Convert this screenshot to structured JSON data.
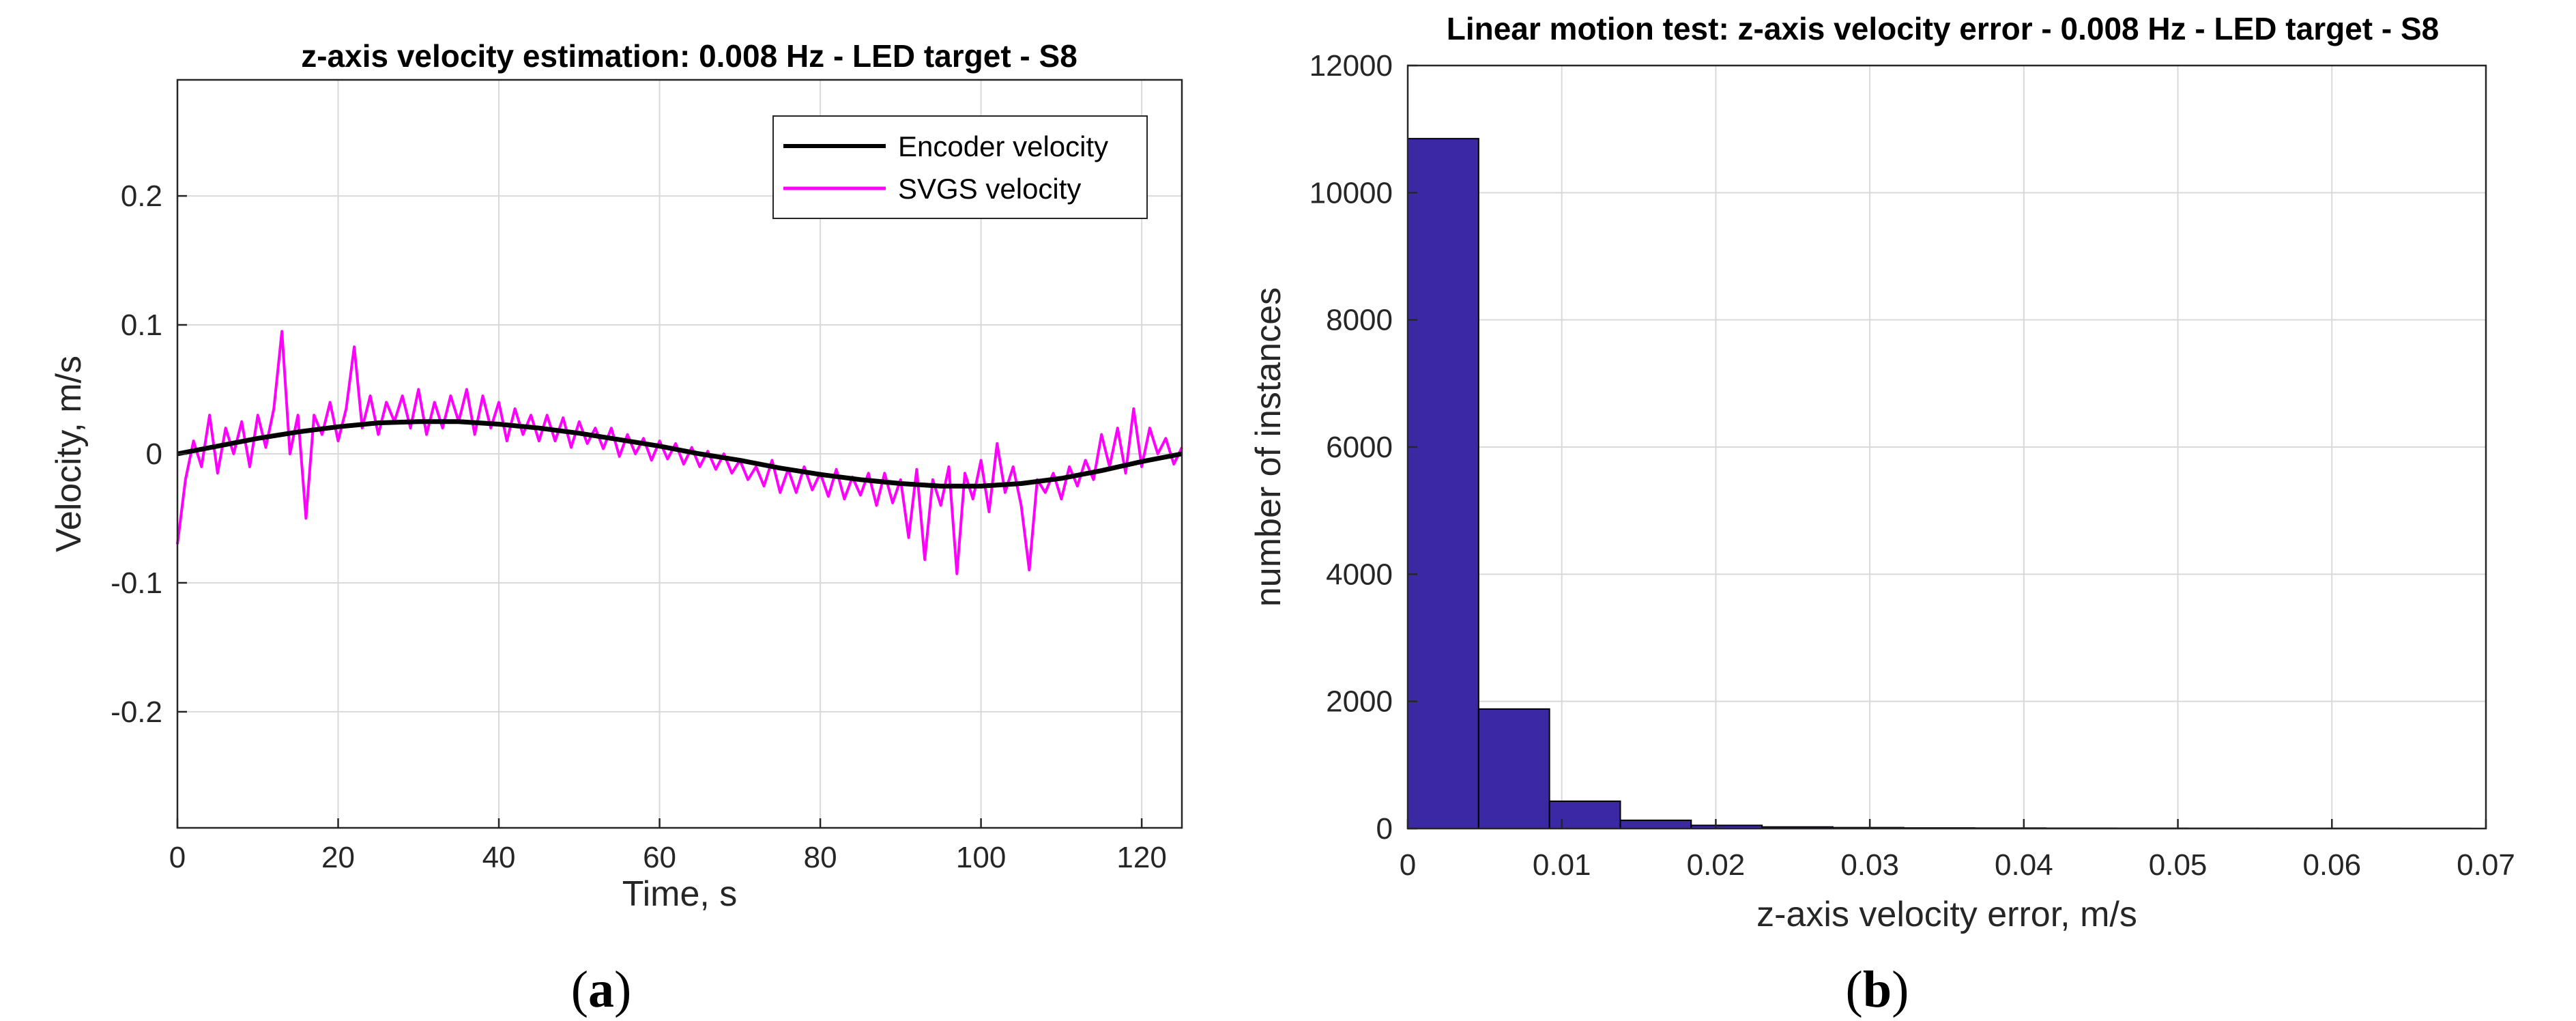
{
  "chart_data": [
    {
      "type": "line",
      "title": "z-axis velocity estimation: 0.008 Hz - LED target - S8",
      "xlabel": "Time, s",
      "ylabel": "Velocity, m/s",
      "xlim": [
        0,
        125
      ],
      "ylim": [
        -0.29,
        0.29
      ],
      "xticks": [
        0,
        20,
        40,
        60,
        80,
        100,
        120
      ],
      "yticks": [
        -0.2,
        -0.1,
        0,
        0.1,
        0.2
      ],
      "xtick_labels": [
        "0",
        "20",
        "40",
        "60",
        "80",
        "100",
        "120"
      ],
      "ytick_labels": [
        "-0.2",
        "-0.1",
        "0",
        "0.1",
        "0.2"
      ],
      "grid": true,
      "legend": {
        "position": "top-right",
        "entries": [
          "Encoder velocity",
          "SVGS velocity"
        ]
      },
      "series": [
        {
          "name": "Encoder velocity",
          "color": "#000000",
          "x": [
            0,
            5,
            10,
            15,
            20,
            25,
            30,
            35,
            40,
            45,
            50,
            55,
            60,
            65,
            70,
            75,
            80,
            85,
            90,
            95,
            100,
            105,
            110,
            115,
            120,
            125
          ],
          "y": [
            0.0,
            0.006,
            0.012,
            0.017,
            0.021,
            0.024,
            0.025,
            0.025,
            0.023,
            0.02,
            0.016,
            0.011,
            0.006,
            0.0,
            -0.005,
            -0.011,
            -0.016,
            -0.02,
            -0.023,
            -0.025,
            -0.025,
            -0.023,
            -0.019,
            -0.013,
            -0.006,
            0.0
          ]
        },
        {
          "name": "SVGS velocity",
          "color": "#ff00ff",
          "x": [
            0,
            1,
            2,
            3,
            4,
            5,
            6,
            7,
            8,
            9,
            10,
            11,
            12,
            13,
            14,
            15,
            16,
            17,
            18,
            19,
            20,
            21,
            22,
            23,
            24,
            25,
            26,
            27,
            28,
            29,
            30,
            31,
            32,
            33,
            34,
            35,
            36,
            37,
            38,
            39,
            40,
            41,
            42,
            43,
            44,
            45,
            46,
            47,
            48,
            49,
            50,
            51,
            52,
            53,
            54,
            55,
            56,
            57,
            58,
            59,
            60,
            61,
            62,
            63,
            64,
            65,
            66,
            67,
            68,
            69,
            70,
            71,
            72,
            73,
            74,
            75,
            76,
            77,
            78,
            79,
            80,
            81,
            82,
            83,
            84,
            85,
            86,
            87,
            88,
            89,
            90,
            91,
            92,
            93,
            94,
            95,
            96,
            97,
            98,
            99,
            100,
            101,
            102,
            103,
            104,
            105,
            106,
            107,
            108,
            109,
            110,
            111,
            112,
            113,
            114,
            115,
            116,
            117,
            118,
            119,
            120,
            121,
            122,
            123,
            124,
            125
          ],
          "y": [
            -0.07,
            -0.02,
            0.01,
            -0.01,
            0.03,
            -0.015,
            0.02,
            0.0,
            0.025,
            -0.01,
            0.03,
            0.005,
            0.035,
            0.095,
            0.0,
            0.03,
            -0.05,
            0.03,
            0.015,
            0.04,
            0.01,
            0.035,
            0.083,
            0.02,
            0.045,
            0.015,
            0.04,
            0.025,
            0.045,
            0.02,
            0.05,
            0.015,
            0.04,
            0.02,
            0.045,
            0.025,
            0.05,
            0.015,
            0.045,
            0.02,
            0.04,
            0.01,
            0.035,
            0.015,
            0.03,
            0.01,
            0.03,
            0.01,
            0.028,
            0.005,
            0.025,
            0.008,
            0.02,
            0.004,
            0.02,
            -0.002,
            0.015,
            0.0,
            0.012,
            -0.005,
            0.01,
            -0.004,
            0.008,
            -0.008,
            0.005,
            -0.01,
            0.002,
            -0.012,
            0.0,
            -0.015,
            -0.005,
            -0.02,
            -0.01,
            -0.025,
            -0.005,
            -0.03,
            -0.012,
            -0.03,
            -0.01,
            -0.028,
            -0.015,
            -0.033,
            -0.012,
            -0.035,
            -0.018,
            -0.032,
            -0.015,
            -0.04,
            -0.015,
            -0.038,
            -0.02,
            -0.065,
            -0.012,
            -0.082,
            -0.02,
            -0.04,
            -0.01,
            -0.093,
            -0.015,
            -0.035,
            -0.005,
            -0.045,
            0.008,
            -0.03,
            -0.01,
            -0.04,
            -0.09,
            -0.02,
            -0.03,
            -0.015,
            -0.035,
            -0.01,
            -0.025,
            -0.005,
            -0.02,
            0.015,
            -0.01,
            0.02,
            -0.015,
            0.035,
            -0.01,
            0.02,
            0.0,
            0.012,
            -0.008,
            0.005
          ]
        }
      ]
    },
    {
      "type": "bar",
      "subtype": "histogram",
      "title": "Linear motion test: z-axis velocity error - 0.008 Hz - LED target - S8",
      "xlabel": "z-axis velocity error, m/s",
      "ylabel": "number of instances",
      "xlim": [
        0,
        0.07
      ],
      "ylim": [
        0,
        12000
      ],
      "xticks": [
        0,
        0.01,
        0.02,
        0.03,
        0.04,
        0.05,
        0.06,
        0.07
      ],
      "yticks": [
        0,
        2000,
        4000,
        6000,
        8000,
        10000,
        12000
      ],
      "xtick_labels": [
        "0",
        "0.01",
        "0.02",
        "0.03",
        "0.04",
        "0.05",
        "0.06",
        "0.07"
      ],
      "ytick_labels": [
        "0",
        "2000",
        "4000",
        "6000",
        "8000",
        "10000",
        "12000"
      ],
      "grid": true,
      "bar_color": "#3b28a3",
      "bin_edges": [
        0,
        0.0046,
        0.0092,
        0.0138,
        0.0184,
        0.023,
        0.0276,
        0.0322,
        0.0368,
        0.0414,
        0.046,
        0.0506,
        0.0552,
        0.0598,
        0.0644,
        0.069
      ],
      "values": [
        10850,
        1880,
        430,
        130,
        50,
        25,
        15,
        10,
        8,
        6,
        5,
        4,
        3,
        3,
        2
      ]
    }
  ],
  "captions": {
    "a": {
      "open": "(",
      "letter": "a",
      "close": ")"
    },
    "b": {
      "open": "(",
      "letter": "b",
      "close": ")"
    }
  }
}
